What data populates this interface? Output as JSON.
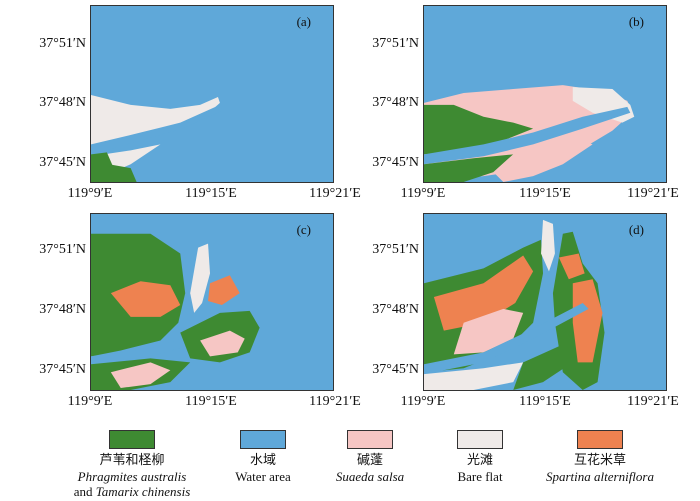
{
  "panels": [
    {
      "id": "a",
      "tag": "(a)"
    },
    {
      "id": "b",
      "tag": "(b)"
    },
    {
      "id": "c",
      "tag": "(c)"
    },
    {
      "id": "d",
      "tag": "(d)"
    }
  ],
  "lat_labels": [
    "37°51′N",
    "37°48′N",
    "37°45′N"
  ],
  "lon_labels": [
    "119°9′E",
    "119°15′E",
    "119°21′E"
  ],
  "legend": [
    {
      "cn": "芦苇和柽柳",
      "en1": "Phragmites australis",
      "en2_pre": "and ",
      "en2_it": "Tamarix chinensis",
      "color": "#3e8a32"
    },
    {
      "cn": "水域",
      "en1": "Water area",
      "color": "#5fa8d9"
    },
    {
      "cn": "碱蓬",
      "en1": "Suaeda salsa",
      "color": "#f6c6c4"
    },
    {
      "cn": "光滩",
      "en1": "Bare flat",
      "color": "#efeae8"
    },
    {
      "cn": "互花米草",
      "en1": "Spartina alterniflora",
      "color": "#ee8250"
    }
  ],
  "colors": {
    "water": "#5fa8d9",
    "reed": "#3e8a32",
    "suaeda": "#f6c6c4",
    "bare": "#efeae8",
    "spartina": "#ee8250"
  }
}
